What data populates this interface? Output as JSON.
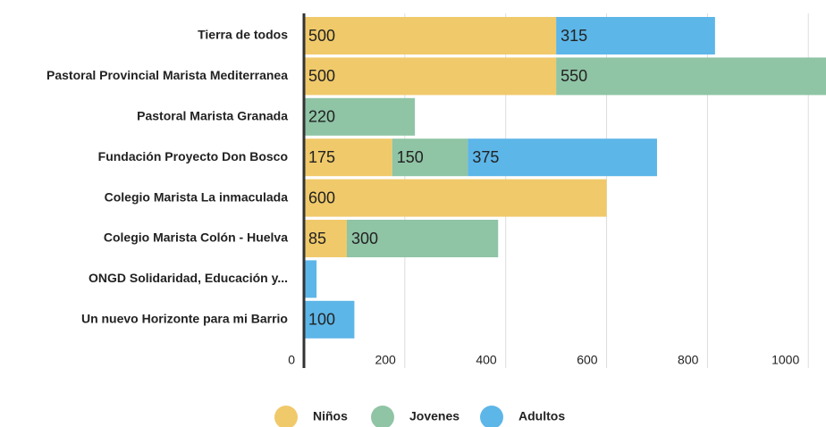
{
  "chart_data": {
    "type": "stacked_barh",
    "categories": [
      "Tierra de todos",
      "Pastoral Provincial Marista Mediterranea",
      "Pastoral Marista Granada",
      "Fundación Proyecto Don Bosco",
      "Colegio Marista La inmaculada",
      "Colegio Marista Colón - Huelva",
      "ONGD Solidaridad, Educación y...",
      "Un nuevo Horizonte para mi Barrio"
    ],
    "series": [
      {
        "name": "Niños",
        "color": "#f0c96a",
        "values": [
          500,
          500,
          null,
          175,
          600,
          85,
          null,
          null
        ]
      },
      {
        "name": "Jovenes",
        "color": "#8fc4a5",
        "values": [
          null,
          550,
          220,
          150,
          null,
          300,
          null,
          null
        ]
      },
      {
        "name": "Adultos",
        "color": "#5db6e8",
        "values": [
          315,
          null,
          null,
          375,
          null,
          null,
          25,
          100
        ]
      }
    ],
    "xlim": [
      0,
      1035
    ],
    "xticks": [
      0,
      200,
      400,
      600,
      800,
      1000
    ],
    "grid": true,
    "legend": "bottom"
  }
}
